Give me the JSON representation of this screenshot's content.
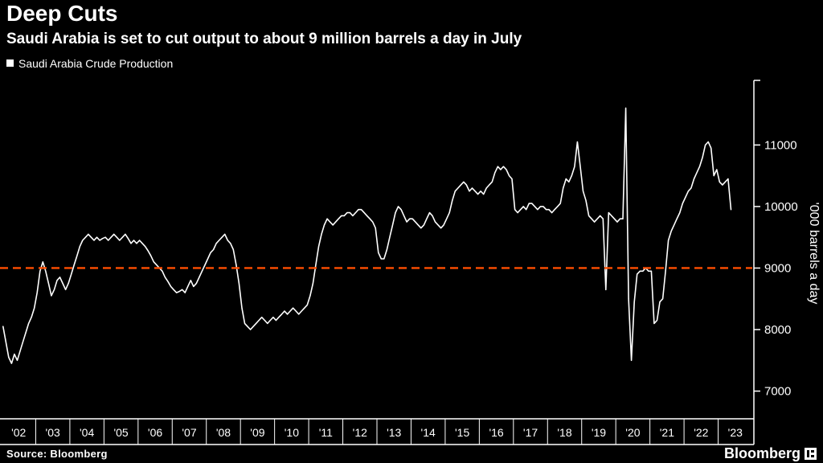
{
  "header": {
    "title": "Deep Cuts",
    "subtitle": "Saudi Arabia is set to cut output to about 9 million barrels a day in July",
    "legend": {
      "label": "Saudi Arabia Crude Production",
      "swatch_color": "#ffffff"
    }
  },
  "footer": {
    "source": "Source: Bloomberg",
    "brand": "Bloomberg"
  },
  "chart_data": {
    "type": "line",
    "title": "Deep Cuts",
    "subtitle": "Saudi Arabia is set to cut output to about 9 million barrels a day in July",
    "ylabel": "'000 barrels a day",
    "xlabel": "",
    "grid": false,
    "background": "#000000",
    "legend_position": "top-left",
    "yticks": [
      7000,
      8000,
      9000,
      10000,
      11000
    ],
    "ylim": [
      6550,
      12050
    ],
    "xlim": [
      2002,
      2024
    ],
    "x_tick_labels": [
      "'02",
      "'03",
      "'04",
      "'05",
      "'06",
      "'07",
      "'08",
      "'09",
      "'10",
      "'11",
      "'12",
      "'13",
      "'14",
      "'15",
      "'16",
      "'17",
      "'18",
      "'19",
      "'20",
      "'21",
      "'22",
      "'23"
    ],
    "reference_line": {
      "value": 9000,
      "color": "#ff4e00",
      "style": "dashed"
    },
    "series": [
      {
        "name": "Saudi Arabia Crude Production",
        "color": "#ffffff",
        "x_start_year": 2002,
        "frequency": "monthly",
        "values": [
          8050,
          7800,
          7550,
          7450,
          7600,
          7500,
          7650,
          7800,
          7950,
          8100,
          8200,
          8350,
          8600,
          8950,
          9100,
          8950,
          8750,
          8550,
          8650,
          8800,
          8850,
          8750,
          8650,
          8750,
          8900,
          9050,
          9200,
          9350,
          9450,
          9500,
          9550,
          9500,
          9450,
          9500,
          9450,
          9480,
          9500,
          9450,
          9500,
          9550,
          9500,
          9450,
          9500,
          9550,
          9480,
          9400,
          9450,
          9400,
          9450,
          9400,
          9350,
          9280,
          9200,
          9100,
          9050,
          9000,
          8950,
          8850,
          8780,
          8700,
          8650,
          8600,
          8620,
          8650,
          8600,
          8700,
          8800,
          8700,
          8750,
          8850,
          8950,
          9050,
          9150,
          9250,
          9300,
          9400,
          9450,
          9500,
          9550,
          9450,
          9400,
          9300,
          9050,
          8750,
          8350,
          8100,
          8050,
          8000,
          8050,
          8100,
          8150,
          8200,
          8150,
          8100,
          8150,
          8200,
          8150,
          8200,
          8250,
          8300,
          8250,
          8300,
          8350,
          8300,
          8250,
          8300,
          8350,
          8400,
          8550,
          8750,
          9050,
          9350,
          9550,
          9700,
          9800,
          9750,
          9700,
          9750,
          9800,
          9850,
          9850,
          9900,
          9900,
          9850,
          9900,
          9950,
          9950,
          9900,
          9850,
          9800,
          9750,
          9650,
          9250,
          9150,
          9150,
          9300,
          9500,
          9700,
          9900,
          10000,
          9950,
          9850,
          9750,
          9800,
          9800,
          9750,
          9700,
          9650,
          9700,
          9800,
          9900,
          9850,
          9750,
          9700,
          9650,
          9700,
          9800,
          9900,
          10100,
          10250,
          10300,
          10350,
          10400,
          10350,
          10250,
          10300,
          10250,
          10200,
          10250,
          10200,
          10300,
          10350,
          10400,
          10550,
          10650,
          10600,
          10650,
          10600,
          10500,
          10450,
          9950,
          9900,
          9950,
          10000,
          9950,
          10050,
          10050,
          10000,
          9950,
          10000,
          10000,
          9950,
          9950,
          9900,
          9950,
          10000,
          10050,
          10300,
          10450,
          10400,
          10500,
          10650,
          11050,
          10650,
          10250,
          10100,
          9850,
          9800,
          9750,
          9800,
          9850,
          9800,
          8650,
          9900,
          9850,
          9800,
          9750,
          9800,
          9800,
          11600,
          8500,
          7500,
          8450,
          8900,
          8950,
          8950,
          9000,
          8950,
          8950,
          8100,
          8150,
          8450,
          8500,
          8950,
          9450,
          9600,
          9700,
          9800,
          9900,
          10050,
          10150,
          10250,
          10300,
          10450,
          10550,
          10650,
          10800,
          11000,
          11050,
          10950,
          10500,
          10600,
          10400,
          10350,
          10400,
          10450,
          9950
        ]
      }
    ]
  }
}
